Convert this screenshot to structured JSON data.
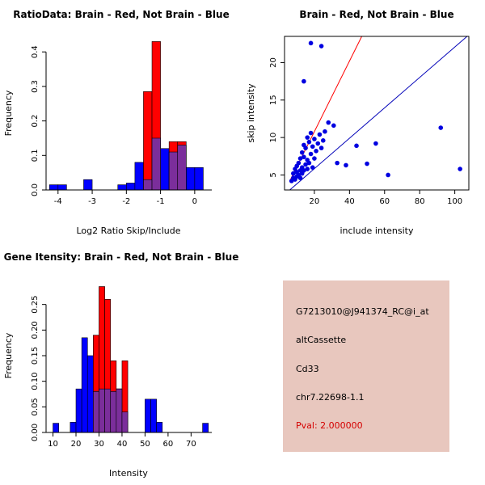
{
  "page": {
    "background": "#ffffff"
  },
  "colors": {
    "red": "#FF0000",
    "blue": "#0000FF",
    "overlap": "#7B2E9B",
    "scatter_point": "#0000E0",
    "line_red": "#FF0000",
    "line_blue": "#0000B8",
    "axis": "#000000"
  },
  "chart_data": [
    {
      "type": "histogram",
      "title": "RatioData: Brain - Red, Not Brain - Blue",
      "xlabel": "Log2 Ratio Skip/Include",
      "ylabel": "Frequency",
      "xlim": [
        -4.35,
        0.5
      ],
      "ylim": [
        0,
        0.445
      ],
      "xticks": [
        -4,
        -3,
        -2,
        -1,
        0
      ],
      "xtick_labels": [
        "-4",
        "-3",
        "-2",
        "-1",
        "0"
      ],
      "yticks": [
        0,
        0.1,
        0.2,
        0.3,
        0.4
      ],
      "ytick_labels": [
        "0.0",
        "0.1",
        "0.2",
        "0.3",
        "0.4"
      ],
      "bin_width": 0.25,
      "grid": false,
      "series": [
        {
          "name": "Not Brain",
          "color_key": "blue",
          "bins": [
            [
              -4.25,
              0.015
            ],
            [
              -4.0,
              0.015
            ],
            [
              -3.25,
              0.03
            ],
            [
              -2.25,
              0.015
            ],
            [
              -2.0,
              0.02
            ],
            [
              -1.75,
              0.08
            ],
            [
              -1.5,
              0.03
            ],
            [
              -1.25,
              0.15
            ],
            [
              -1.0,
              0.12
            ],
            [
              -0.75,
              0.11
            ],
            [
              -0.5,
              0.13
            ],
            [
              -0.25,
              0.065
            ],
            [
              0,
              0.065
            ]
          ]
        },
        {
          "name": "Brain",
          "color_key": "red",
          "bins": [
            [
              -1.5,
              0.285
            ],
            [
              -1.25,
              0.43
            ],
            [
              -0.75,
              0.14
            ],
            [
              -0.5,
              0.14
            ]
          ]
        }
      ]
    },
    {
      "type": "scatter",
      "title": "Brain - Red, Not Brain - Blue",
      "xlabel": "include intensity",
      "ylabel": "skip intensity",
      "xlim": [
        3,
        108
      ],
      "ylim": [
        3,
        23.5
      ],
      "xticks": [
        20,
        40,
        60,
        80,
        100
      ],
      "xtick_labels": [
        "20",
        "40",
        "60",
        "80",
        "100"
      ],
      "yticks": [
        5,
        10,
        15,
        20
      ],
      "ytick_labels": [
        "5",
        "10",
        "15",
        "20"
      ],
      "grid": false,
      "points": [
        [
          7,
          4.2
        ],
        [
          8,
          4.6
        ],
        [
          8,
          5.2
        ],
        [
          9,
          4.4
        ],
        [
          9,
          5.8
        ],
        [
          10,
          4.8
        ],
        [
          10,
          5.4
        ],
        [
          10,
          6.2
        ],
        [
          11,
          5.0
        ],
        [
          11,
          6.6
        ],
        [
          12,
          4.6
        ],
        [
          12,
          5.6
        ],
        [
          12,
          7.2
        ],
        [
          13,
          5.2
        ],
        [
          13,
          6.0
        ],
        [
          13,
          8.0
        ],
        [
          14,
          5.6
        ],
        [
          14,
          7.4
        ],
        [
          14,
          9.0
        ],
        [
          15,
          6.4
        ],
        [
          15,
          8.6
        ],
        [
          16,
          5.8
        ],
        [
          16,
          7.0
        ],
        [
          16,
          10.0
        ],
        [
          17,
          6.6
        ],
        [
          17,
          9.4
        ],
        [
          18,
          7.8
        ],
        [
          18,
          10.6
        ],
        [
          19,
          6.0
        ],
        [
          19,
          8.8
        ],
        [
          20,
          7.2
        ],
        [
          20,
          9.8
        ],
        [
          21,
          8.2
        ],
        [
          22,
          9.2
        ],
        [
          23,
          10.4
        ],
        [
          24,
          8.6
        ],
        [
          25,
          9.6
        ],
        [
          26,
          10.8
        ],
        [
          14,
          17.5
        ],
        [
          18,
          22.6
        ],
        [
          24,
          22.2
        ],
        [
          28,
          12.0
        ],
        [
          31,
          11.6
        ],
        [
          33,
          6.6
        ],
        [
          38,
          6.3
        ],
        [
          44,
          8.9
        ],
        [
          50,
          6.5
        ],
        [
          55,
          9.2
        ],
        [
          62,
          5.0
        ],
        [
          92,
          11.3
        ],
        [
          103,
          5.8
        ]
      ],
      "lines": [
        {
          "name": "brain-fit",
          "color_key": "line_red",
          "x1": 6,
          "y1": 4.2,
          "x2": 47,
          "y2": 23.5
        },
        {
          "name": "notbrain-fit",
          "color_key": "line_blue",
          "x1": 6,
          "y1": 3.0,
          "x2": 107,
          "y2": 23.5
        }
      ]
    },
    {
      "type": "histogram",
      "title": "Gene Itensity: Brain - Red, Not Brain - Blue",
      "xlabel": "Intensity",
      "ylabel": "Frequency",
      "xlim": [
        7,
        79
      ],
      "ylim": [
        0,
        0.3
      ],
      "xticks": [
        10,
        20,
        30,
        40,
        50,
        60,
        70
      ],
      "xtick_labels": [
        "10",
        "20",
        "30",
        "40",
        "50",
        "60",
        "70"
      ],
      "yticks": [
        0,
        0.05,
        0.1,
        0.15,
        0.2,
        0.25
      ],
      "ytick_labels": [
        "0.00",
        "0.05",
        "0.10",
        "0.15",
        "0.20",
        "0.25"
      ],
      "bin_width": 2.5,
      "grid": false,
      "series": [
        {
          "name": "Not Brain",
          "color_key": "blue",
          "bins": [
            [
              10,
              0.018
            ],
            [
              17.5,
              0.02
            ],
            [
              20,
              0.085
            ],
            [
              22.5,
              0.185
            ],
            [
              25,
              0.15
            ],
            [
              27.5,
              0.08
            ],
            [
              30,
              0.085
            ],
            [
              32.5,
              0.085
            ],
            [
              35,
              0.08
            ],
            [
              37.5,
              0.085
            ],
            [
              40,
              0.04
            ],
            [
              50,
              0.065
            ],
            [
              52.5,
              0.065
            ],
            [
              55,
              0.02
            ],
            [
              75,
              0.018
            ]
          ]
        },
        {
          "name": "Brain",
          "color_key": "red",
          "bins": [
            [
              27.5,
              0.19
            ],
            [
              30,
              0.285
            ],
            [
              32.5,
              0.26
            ],
            [
              35,
              0.14
            ],
            [
              37.5,
              0.085
            ],
            [
              40,
              0.14
            ]
          ]
        }
      ]
    }
  ],
  "info_panel": {
    "background": "#E8C7BE",
    "pval_color": "#D40000",
    "lines": [
      "G7213010@J941374_RC@i_at",
      "altCassette",
      "Cd33",
      "chr7.22698-1.1",
      "Pval: 2.000000"
    ]
  }
}
